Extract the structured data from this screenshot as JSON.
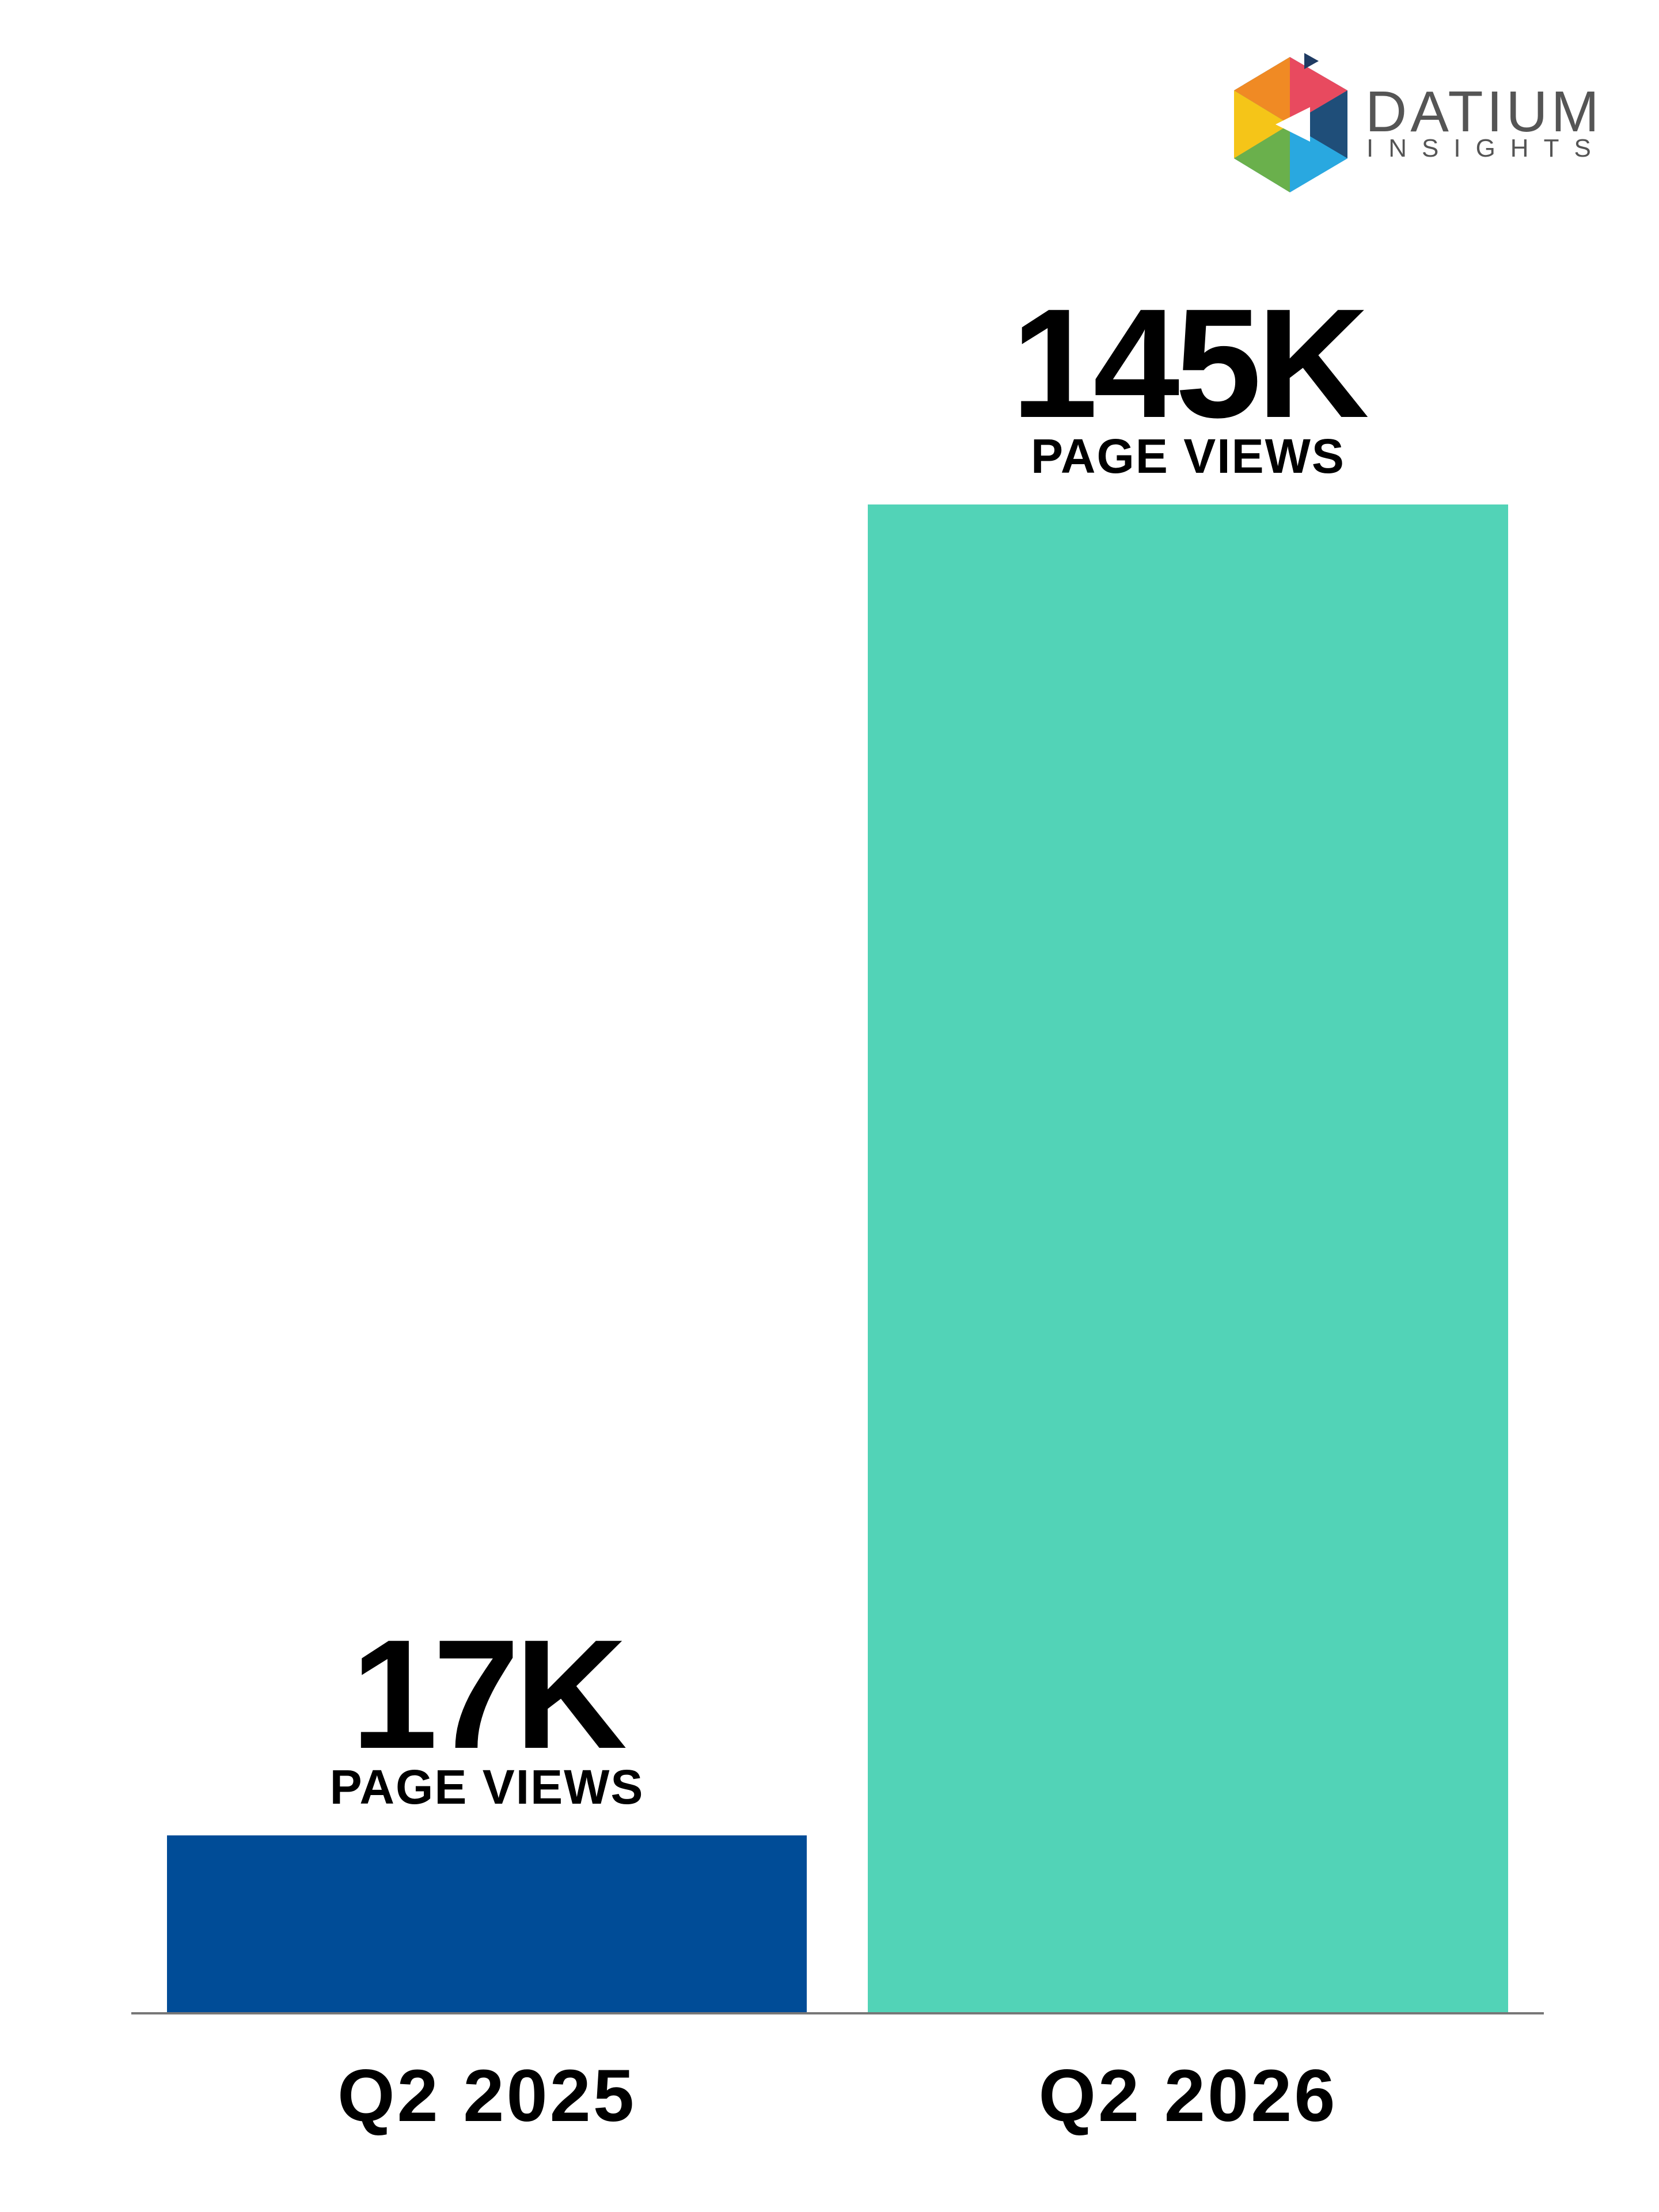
{
  "logo": {
    "name": "DATIUM",
    "tagline": "INSIGHTS"
  },
  "chart_data": {
    "type": "bar",
    "categories": [
      "Q2 2025",
      "Q2 2026"
    ],
    "values": [
      17000,
      145000
    ],
    "value_labels": [
      "17K",
      "145K"
    ],
    "value_caption": "PAGE VIEWS",
    "colors": [
      "#004c97",
      "#52d3b7"
    ]
  }
}
